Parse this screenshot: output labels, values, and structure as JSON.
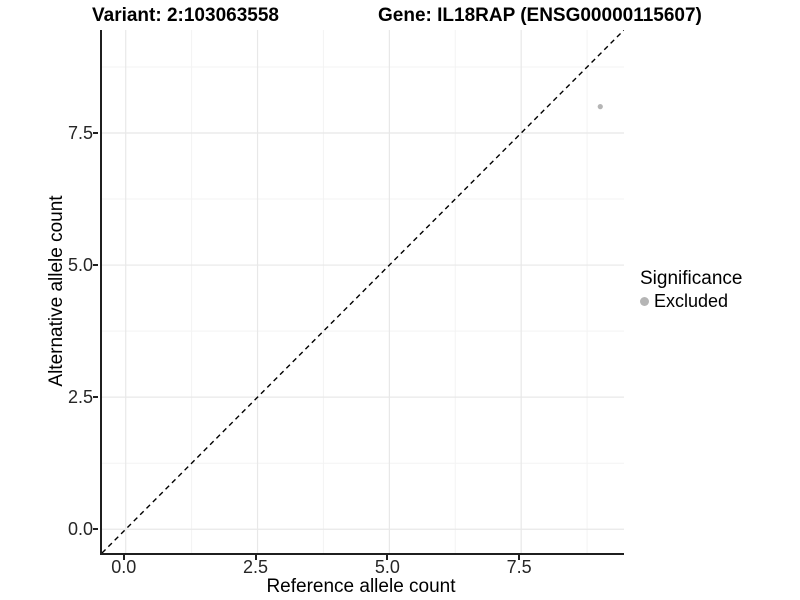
{
  "header": {
    "variant_title": "Variant: 2:103063558",
    "gene_title": "Gene: IL18RAP (ENSG00000115607)"
  },
  "chart_data": {
    "type": "scatter",
    "xlabel": "Reference allele count",
    "ylabel": "Alternative allele count",
    "xlim": [
      -0.45,
      9.45
    ],
    "ylim": [
      -0.45,
      9.45
    ],
    "x_major_ticks": [
      0.0,
      2.5,
      5.0,
      7.5
    ],
    "y_major_ticks": [
      0.0,
      2.5,
      5.0,
      7.5
    ],
    "x_minor_ticks": [
      1.25,
      3.75,
      6.25,
      8.75
    ],
    "y_minor_ticks": [
      1.25,
      3.75,
      6.25,
      8.75
    ],
    "grid": true,
    "series": [
      {
        "name": "Excluded",
        "color": "#b5b5b5",
        "points": [
          {
            "x": 9,
            "y": 8
          }
        ]
      }
    ],
    "reference_line": {
      "kind": "identity y=x",
      "style": "dashed",
      "color": "#000000"
    },
    "legend": {
      "title": "Significance",
      "position": "right",
      "entries": [
        {
          "label": "Excluded",
          "color": "#b5b5b5",
          "marker": "circle"
        }
      ]
    }
  },
  "colors": {
    "background": "#ffffff",
    "grid_major": "#e8e8e8",
    "grid_minor": "#f3f3f3",
    "axis_line": "#1f1f1f",
    "point": "#b5b5b5",
    "text": "#000000"
  }
}
